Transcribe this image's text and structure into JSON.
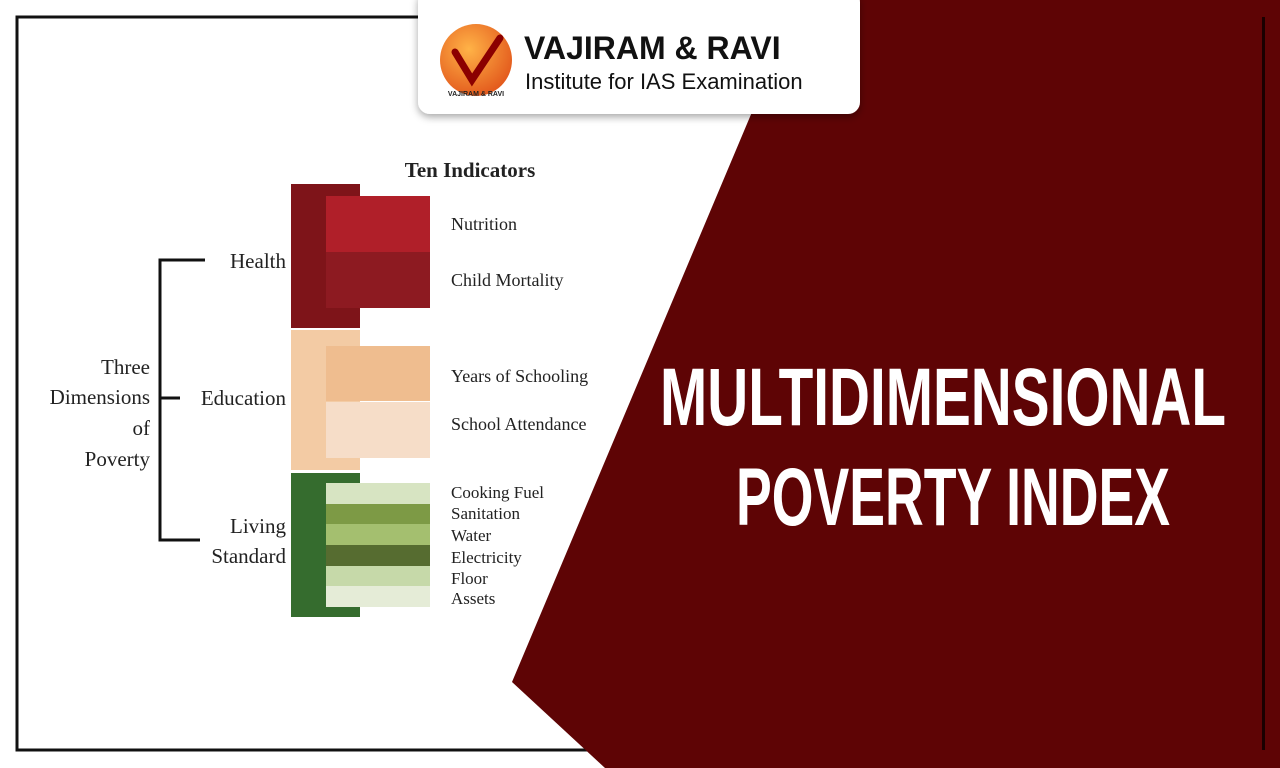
{
  "header": {
    "brand": "VAJIRAM & RAVI",
    "tagline": "Institute for IAS Examination",
    "logo_text": "VAJIRAM & RAVI"
  },
  "diagram": {
    "title": "Ten Indicators",
    "root": [
      "Three",
      "Dimensions",
      "of",
      "Poverty"
    ],
    "dimensions": [
      {
        "label": [
          "Health"
        ],
        "indicators": [
          "Nutrition",
          "Child Mortality"
        ]
      },
      {
        "label": [
          "Education"
        ],
        "indicators": [
          "Years of Schooling",
          "School Attendance"
        ]
      },
      {
        "label": [
          "Living",
          "Standard"
        ],
        "indicators": [
          "Cooking Fuel",
          "Sanitation",
          "Water",
          "Electricity",
          "Floor",
          "Assets"
        ]
      }
    ]
  },
  "headline": [
    "MULTIDIMENSIONAL",
    "POVERTY INDEX"
  ]
}
